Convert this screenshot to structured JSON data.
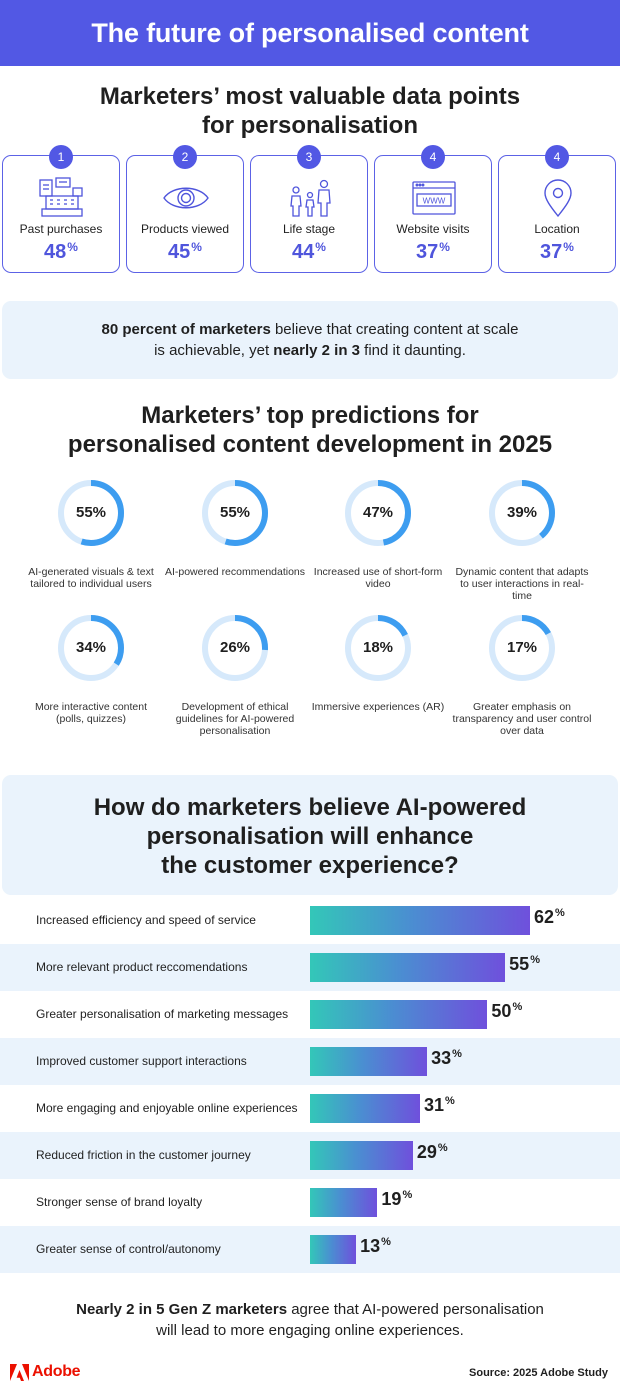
{
  "banner_title": "The future of personalised content",
  "data_points": {
    "title_line1": "Marketers’ most valuable data points",
    "title_line2": "for personalisation",
    "items": [
      {
        "rank": "1",
        "label": "Past purchases",
        "value": "48",
        "unit": "%",
        "icon": "cash-register-icon"
      },
      {
        "rank": "2",
        "label": "Products viewed",
        "value": "45",
        "unit": "%",
        "icon": "eye-icon"
      },
      {
        "rank": "3",
        "label": "Life stage",
        "value": "44",
        "unit": "%",
        "icon": "family-icon"
      },
      {
        "rank": "4",
        "label": "Website visits",
        "value": "37",
        "unit": "%",
        "icon": "browser-www-icon"
      },
      {
        "rank": "4",
        "label": "Location",
        "value": "37",
        "unit": "%",
        "icon": "map-pin-icon"
      }
    ]
  },
  "callout": {
    "bold1": "80 percent of marketers",
    "text1": " believe that creating content at scale",
    "text2": "is achievable, yet ",
    "bold2": "nearly 2 in 3",
    "text3": " find it daunting."
  },
  "predictions_title_line1": "Marketers’ top predictions for",
  "predictions_title_line2": "personalised content development in 2025",
  "question": {
    "line1": "How do marketers believe AI-powered",
    "line2": "personalisation will enhance",
    "line3": "the customer experience?"
  },
  "footer": {
    "bold": "Nearly 2 in 5 Gen Z marketers",
    "text1": " agree that AI-powered personalisation",
    "text2": "will lead to more engaging online experiences."
  },
  "brand": "Adobe",
  "source": "Source: 2025 Adobe Study",
  "colors": {
    "accent": "#5258e4",
    "ring": "#3d9df0",
    "ring_track": "#d6e9fb",
    "panel": "#eaf3fc",
    "bar_start": "#33c7b8",
    "bar_end": "#6f50dc",
    "brand": "#eb1000"
  },
  "chart_data": [
    {
      "type": "pie",
      "title": "Marketers’ top predictions for personalised content development in 2025",
      "unit": "%",
      "items": [
        {
          "label": "AI-generated visuals & text tailored to individual users",
          "value": 55,
          "display": "55%"
        },
        {
          "label": "AI-powered recommendations",
          "value": 55,
          "display": "55%"
        },
        {
          "label": "Increased use of short-form video",
          "value": 47,
          "display": "47%"
        },
        {
          "label": "Dynamic content that adapts to user interactions in real-time",
          "value": 39,
          "display": "39%"
        },
        {
          "label": "More interactive content (polls, quizzes)",
          "value": 34,
          "display": "34%"
        },
        {
          "label": "Development of ethical guidelines for AI-powered personalisation",
          "value": 26,
          "display": "26%"
        },
        {
          "label": "Immersive experiences (AR)",
          "value": 18,
          "display": "18%"
        },
        {
          "label": "Greater emphasis on transparency and user control over data",
          "value": 17,
          "display": "17%"
        }
      ]
    },
    {
      "type": "bar",
      "title": "How do marketers believe AI-powered personalisation will enhance the customer experience?",
      "unit": "%",
      "categories": [
        "Increased efficiency and speed of service",
        "More relevant product reccomendations",
        "Greater personalisation of marketing messages",
        "Improved customer support interactions",
        "More engaging and enjoyable online experiences",
        "Reduced friction in the customer journey",
        "Stronger sense of brand loyalty",
        "Greater sense of control/autonomy"
      ],
      "values": [
        62,
        55,
        50,
        33,
        31,
        29,
        19,
        13
      ]
    }
  ]
}
